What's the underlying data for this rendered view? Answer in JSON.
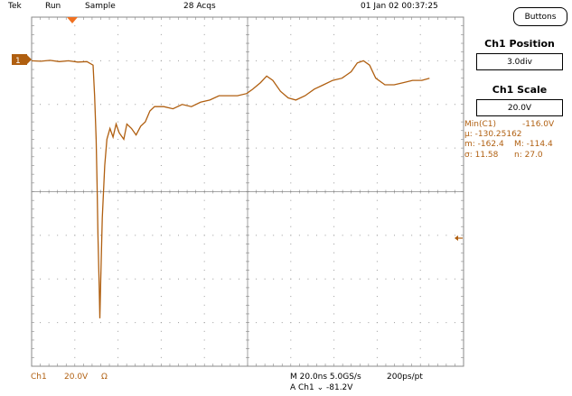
{
  "status_bar": {
    "brand": "Tek",
    "run_state": "Run",
    "acq_mode": "Sample",
    "acq_count": "28 Acqs",
    "datetime": "01 Jan 02 00:37:25"
  },
  "panel": {
    "buttons_label": "Buttons",
    "position_title": "Ch1 Position",
    "position_value": "3.0div",
    "scale_title": "Ch1 Scale",
    "scale_value": "20.0V"
  },
  "measurements": {
    "min_label": "Min(C1)",
    "min_value": "-116.0V",
    "mean_label": "μ: -130.25162",
    "m_label": "m: -162.4",
    "M_label": "M: -114.4",
    "sigma_label": "σ: 11.58",
    "n_label": "n: 27.0"
  },
  "channel": {
    "marker": "1",
    "label": "Ch1",
    "scale": "20.0V",
    "coupling": "Ω"
  },
  "timebase": {
    "main": "M 20.0ns 5.0GS/s",
    "per_point": "200ps/pt",
    "trigger": "A  Ch1  ⌄  -81.2V"
  },
  "colors": {
    "trace": "#b05f10",
    "grid": "#888888",
    "trigger_marker": "#f07020"
  },
  "trace_points": [
    [
      0.0,
      3.0
    ],
    [
      0.3,
      2.99
    ],
    [
      0.6,
      3.01
    ],
    [
      0.9,
      2.98
    ],
    [
      1.2,
      3.0
    ],
    [
      1.5,
      2.97
    ],
    [
      1.8,
      2.98
    ],
    [
      2.0,
      2.9
    ],
    [
      2.05,
      2.2
    ],
    [
      2.1,
      1.2
    ],
    [
      2.13,
      0.2
    ],
    [
      2.16,
      -1.0
    ],
    [
      2.2,
      -2.2
    ],
    [
      2.22,
      -2.9
    ],
    [
      2.25,
      -2.0
    ],
    [
      2.3,
      -0.6
    ],
    [
      2.38,
      0.6
    ],
    [
      2.45,
      1.2
    ],
    [
      2.55,
      1.45
    ],
    [
      2.65,
      1.25
    ],
    [
      2.75,
      1.55
    ],
    [
      2.85,
      1.35
    ],
    [
      3.0,
      1.2
    ],
    [
      3.1,
      1.55
    ],
    [
      3.25,
      1.45
    ],
    [
      3.4,
      1.3
    ],
    [
      3.55,
      1.5
    ],
    [
      3.7,
      1.6
    ],
    [
      3.85,
      1.85
    ],
    [
      4.0,
      1.95
    ],
    [
      4.3,
      1.95
    ],
    [
      4.6,
      1.9
    ],
    [
      4.9,
      2.0
    ],
    [
      5.2,
      1.95
    ],
    [
      5.5,
      2.05
    ],
    [
      5.8,
      2.1
    ],
    [
      6.1,
      2.2
    ],
    [
      6.4,
      2.2
    ],
    [
      6.7,
      2.2
    ],
    [
      7.0,
      2.25
    ],
    [
      7.2,
      2.35
    ],
    [
      7.45,
      2.5
    ],
    [
      7.65,
      2.65
    ],
    [
      7.85,
      2.55
    ],
    [
      8.1,
      2.3
    ],
    [
      8.35,
      2.15
    ],
    [
      8.6,
      2.1
    ],
    [
      8.9,
      2.2
    ],
    [
      9.2,
      2.35
    ],
    [
      9.5,
      2.45
    ],
    [
      9.8,
      2.55
    ],
    [
      10.1,
      2.6
    ],
    [
      10.4,
      2.75
    ],
    [
      10.6,
      2.95
    ],
    [
      10.8,
      3.0
    ],
    [
      11.0,
      2.9
    ],
    [
      11.2,
      2.6
    ],
    [
      11.5,
      2.45
    ],
    [
      11.8,
      2.45
    ],
    [
      12.1,
      2.5
    ],
    [
      12.4,
      2.55
    ],
    [
      12.7,
      2.55
    ],
    [
      12.95,
      2.6
    ]
  ]
}
